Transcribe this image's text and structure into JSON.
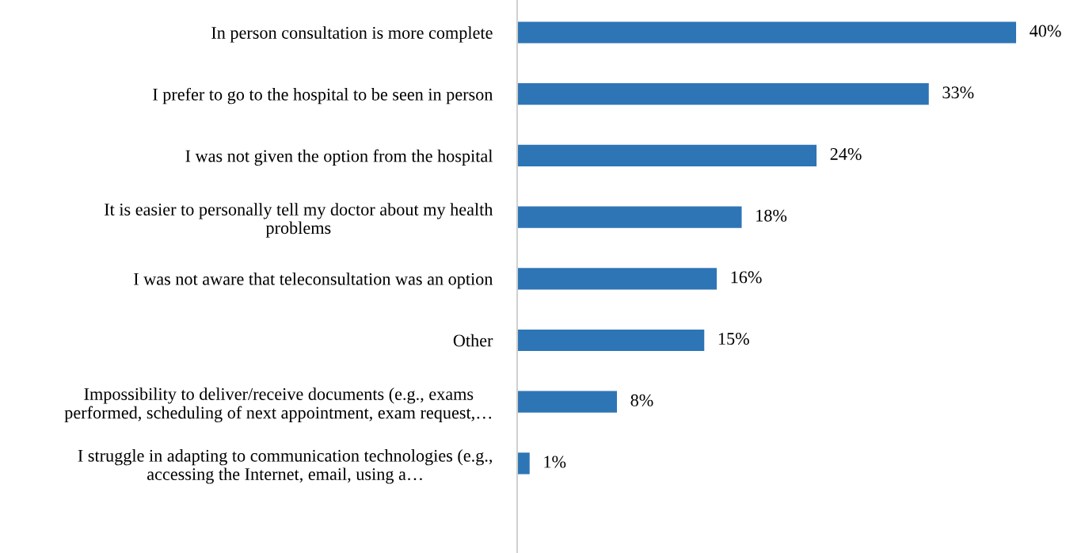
{
  "chart_data": {
    "type": "bar",
    "orientation": "horizontal",
    "categories": [
      "In person consultation is more complete",
      "I prefer to go to the hospital to be seen in person",
      "I was not given the option from the hospital",
      "It is easier to personally tell my doctor about my health\nproblems",
      "I was not aware that teleconsultation was an option",
      "Other",
      "Impossibility to deliver/receive documents (e.g., exams\nperformed, scheduling of next appointment, exam request,…",
      "I struggle in adapting to communication technologies (e.g.,\naccessing the Internet, email, using a…"
    ],
    "values": [
      40,
      33,
      24,
      18,
      16,
      15,
      8,
      1
    ],
    "value_labels": [
      "40%",
      "33%",
      "24%",
      "18%",
      "16%",
      "15%",
      "8%",
      "1%"
    ],
    "color": "#2e75b6",
    "grid": false
  }
}
